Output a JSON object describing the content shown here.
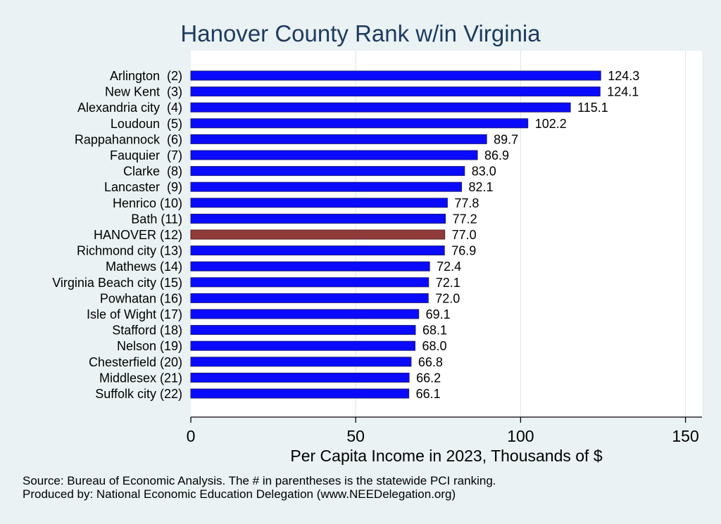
{
  "chart_data": {
    "type": "bar",
    "orientation": "horizontal",
    "title": "Hanover County Rank w/in Virginia",
    "xlabel": "Per Capita Income in 2023, Thousands of $",
    "ylabel": "",
    "xlim": [
      0,
      155
    ],
    "x_ticks": [
      0,
      50,
      100,
      150
    ],
    "grid": true,
    "categories": [
      "Arlington  (2)",
      "New Kent  (3)",
      "Alexandria city  (4)",
      "Loudoun  (5)",
      "Rappahannock  (6)",
      "Fauquier  (7)",
      "Clarke  (8)",
      "Lancaster  (9)",
      "Henrico (10)",
      "Bath (11)",
      "HANOVER (12)",
      "Richmond city (13)",
      "Mathews (14)",
      "Virginia Beach city (15)",
      "Powhatan (16)",
      "Isle of Wight (17)",
      "Stafford (18)",
      "Nelson (19)",
      "Chesterfield (20)",
      "Middlesex (21)",
      "Suffolk city (22)"
    ],
    "values": [
      124.3,
      124.1,
      115.1,
      102.2,
      89.7,
      86.9,
      83.0,
      82.1,
      77.8,
      77.2,
      77.0,
      76.9,
      72.4,
      72.1,
      72.0,
      69.1,
      68.1,
      68.0,
      66.8,
      66.2,
      66.1
    ],
    "value_labels": [
      "124.3",
      "124.1",
      "115.1",
      "102.2",
      "89.7",
      "86.9",
      "83.0",
      "82.1",
      "77.8",
      "77.2",
      "77.0",
      "76.9",
      "72.4",
      "72.1",
      "72.0",
      "69.1",
      "68.1",
      "68.0",
      "66.8",
      "66.2",
      "66.1"
    ],
    "highlight_category": "HANOVER (12)",
    "colors": {
      "bar": "#0a0aff",
      "bar_outline": "#1a1a7a",
      "highlight_bar": "#903a3a",
      "title": "#1e3a5f",
      "plot_background": "#eaf2f3",
      "grid": "#dde9ec"
    },
    "notes": [
      "Source: Bureau of Economic Analysis. The # in parentheses is the statewide PCI ranking.",
      "Produced by: National Economic Education Delegation (www.NEEDelegation.org)"
    ]
  }
}
